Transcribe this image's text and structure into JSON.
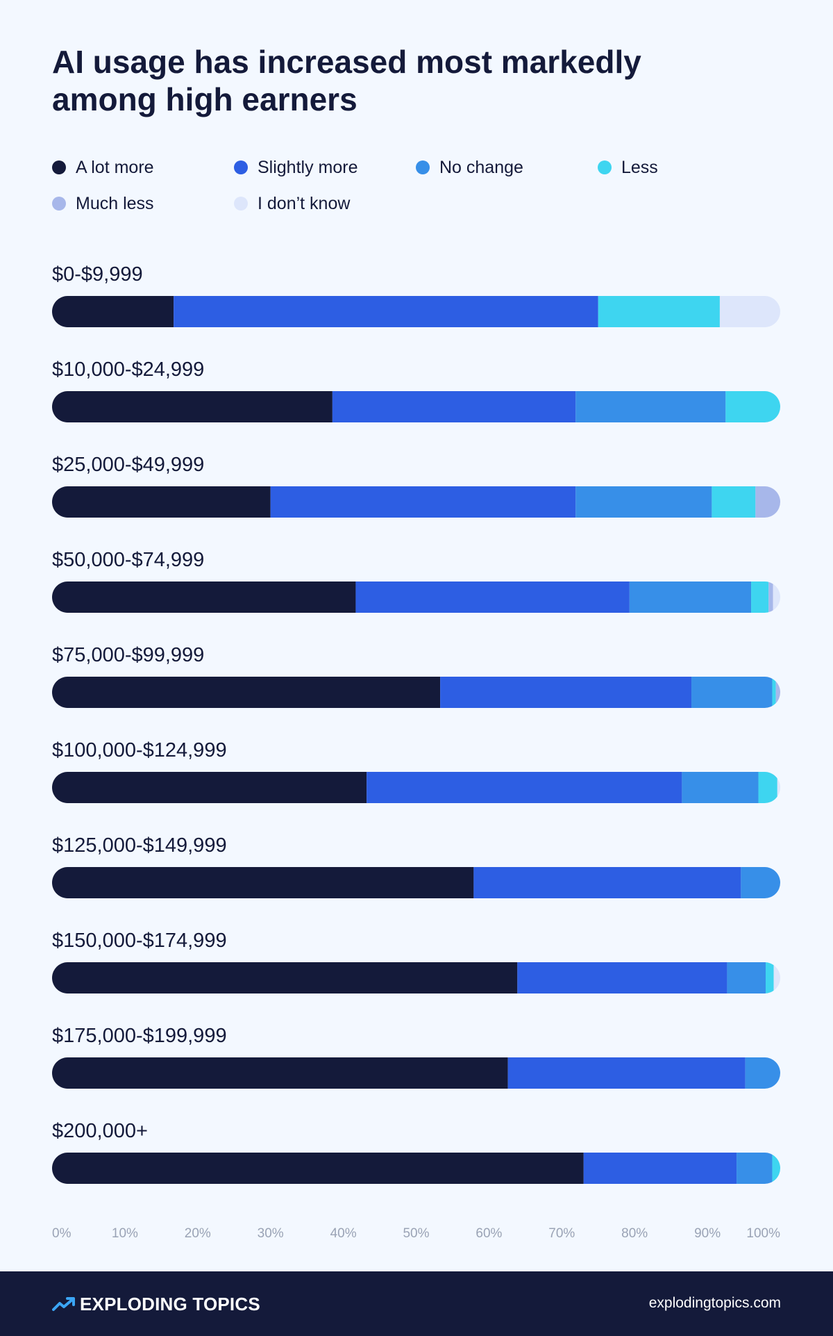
{
  "title": "AI usage has increased most markedly among high earners",
  "legend": [
    {
      "label": "A lot more",
      "color": "#141a3a"
    },
    {
      "label": "Slightly more",
      "color": "#2d5ee3"
    },
    {
      "label": "No change",
      "color": "#378fe8"
    },
    {
      "label": "Less",
      "color": "#3ed5f0"
    },
    {
      "label": "Much less",
      "color": "#a7b7ea"
    },
    {
      "label": "I don’t know",
      "color": "#dde6fb"
    }
  ],
  "chart_data": {
    "type": "bar",
    "orientation": "horizontal",
    "stacked": true,
    "categories": [
      "$0-$9,999",
      "$10,000-$24,999",
      "$25,000-$49,999",
      "$50,000-$74,999",
      "$75,000-$99,999",
      "$100,000-$124,999",
      "$125,000-$149,999",
      "$150,000-$174,999",
      "$175,000-$199,999",
      "$200,000+"
    ],
    "series": [
      {
        "name": "A lot more",
        "color": "#141a3a",
        "values": [
          16.7,
          38.5,
          30,
          41.7,
          53.3,
          43.2,
          57.9,
          63.9,
          62.6,
          73
        ]
      },
      {
        "name": "Slightly more",
        "color": "#2d5ee3",
        "values": [
          58.3,
          33.4,
          41.9,
          37.6,
          34.5,
          43.3,
          36.7,
          28.8,
          32.6,
          21
        ]
      },
      {
        "name": "No change",
        "color": "#378fe8",
        "values": [
          0,
          20.6,
          18.7,
          16.7,
          11.1,
          10.5,
          5.4,
          5.3,
          4.8,
          4.9
        ]
      },
      {
        "name": "Less",
        "color": "#3ed5f0",
        "values": [
          16.7,
          7.5,
          6,
          2.4,
          0.5,
          2.6,
          0,
          1.1,
          0,
          1.1
        ]
      },
      {
        "name": "Much less",
        "color": "#a7b7ea",
        "values": [
          0,
          0,
          3.4,
          0.6,
          0.6,
          0,
          0,
          0,
          0,
          0
        ]
      },
      {
        "name": "I don’t know",
        "color": "#dde6fb",
        "values": [
          8.3,
          0,
          0,
          1,
          0,
          0.4,
          0,
          0.9,
          0,
          0
        ]
      }
    ],
    "xlim": [
      0,
      100
    ],
    "xticks": [
      "0%",
      "10%",
      "20%",
      "30%",
      "40%",
      "50%",
      "60%",
      "70%",
      "80%",
      "90%",
      "100%"
    ]
  },
  "footer": {
    "brand": "EXPLODING TOPICS",
    "site": "explodingtopics.com"
  }
}
